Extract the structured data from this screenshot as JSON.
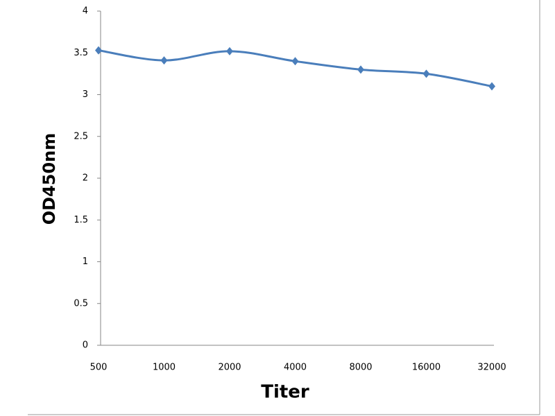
{
  "chart_data": {
    "type": "line",
    "x_label": "Titer",
    "y_label": "OD450nm",
    "categories": [
      "500",
      "1000",
      "2000",
      "4000",
      "8000",
      "16000",
      "32000"
    ],
    "series": [
      {
        "name": "OD450nm",
        "color": "#4a7ebb",
        "values": [
          3.53,
          3.41,
          3.52,
          3.4,
          3.3,
          3.25,
          3.1
        ]
      }
    ],
    "ylim": [
      0,
      4
    ],
    "yticks": [
      0,
      0.5,
      1,
      1.5,
      2,
      2.5,
      3,
      3.5,
      4
    ],
    "grid": false,
    "smooth": true
  }
}
